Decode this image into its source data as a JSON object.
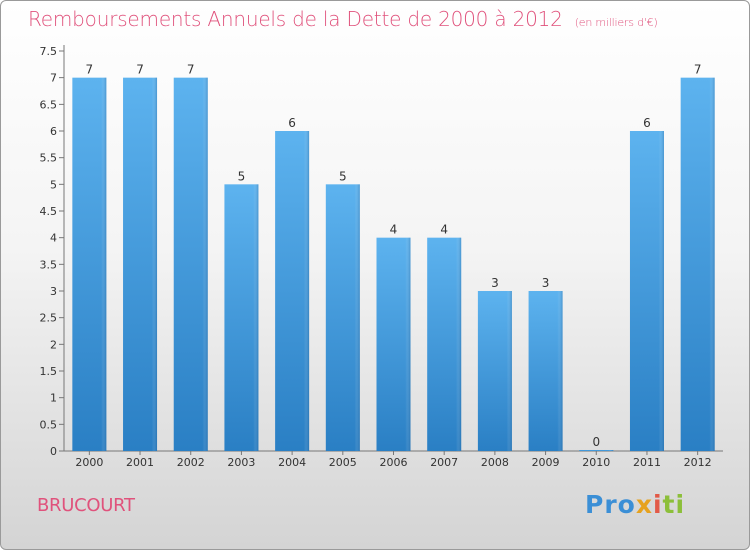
{
  "chart_data": {
    "type": "bar",
    "title": "Remboursements Annuels de la Dette de 2000 à 2012",
    "subtitle": "(en milliers d'€)",
    "categories": [
      "2000",
      "2001",
      "2002",
      "2003",
      "2004",
      "2005",
      "2006",
      "2007",
      "2008",
      "2009",
      "2010",
      "2011",
      "2012"
    ],
    "values": [
      7,
      7,
      7,
      5,
      6,
      5,
      4,
      4,
      3,
      3,
      0,
      6,
      7
    ],
    "data_labels": [
      "7",
      "7",
      "7",
      "5",
      "6",
      "5",
      "4",
      "4",
      "3",
      "3",
      "0",
      "6",
      "7"
    ],
    "y_ticks": [
      "0",
      "0.5",
      "1",
      "1.5",
      "2",
      "2.5",
      "3",
      "3.5",
      "4",
      "4.5",
      "5",
      "5.5",
      "6",
      "6.5",
      "7",
      "7.5"
    ],
    "ylim": [
      0,
      7.5
    ],
    "grid": false,
    "bar_color": "#4ea6e6"
  },
  "place_name": "BRUCOURT",
  "logo": {
    "p1": "Pro",
    "p2": "x",
    "p3": "i",
    "p4": "ti"
  }
}
